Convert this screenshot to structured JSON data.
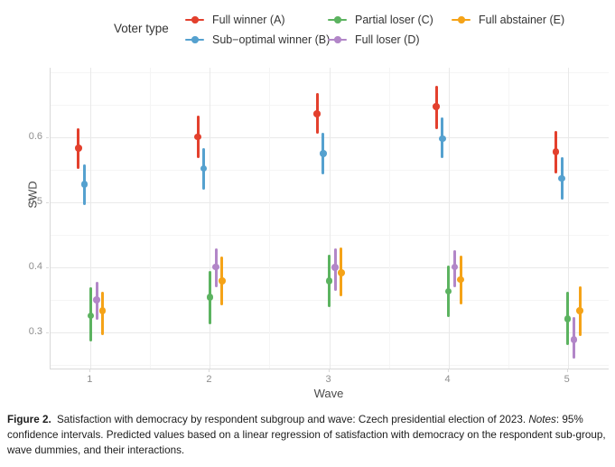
{
  "legend": {
    "title": "Voter type"
  },
  "chart_data": {
    "type": "scatter",
    "title": "",
    "xlabel": "Wave",
    "ylabel": "SWD",
    "categories": [
      "1",
      "2",
      "3",
      "4",
      "5"
    ],
    "yticks": [
      0.3,
      0.4,
      0.5,
      0.6
    ],
    "ylim": [
      0.24,
      0.71
    ],
    "grid": true,
    "legend_position": "top",
    "error_bars": "95% confidence intervals",
    "series": [
      {
        "name": "Full winner (A)",
        "color": "#e3402d",
        "values": [
          0.583,
          0.601,
          0.636,
          0.647,
          0.578
        ],
        "ci_low": [
          0.551,
          0.568,
          0.605,
          0.612,
          0.545
        ],
        "ci_high": [
          0.614,
          0.633,
          0.668,
          0.679,
          0.61
        ]
      },
      {
        "name": "Sub−optimal winner (B)",
        "color": "#55a1cf",
        "values": [
          0.528,
          0.552,
          0.575,
          0.598,
          0.537
        ],
        "ci_low": [
          0.496,
          0.519,
          0.543,
          0.568,
          0.504
        ],
        "ci_high": [
          0.559,
          0.584,
          0.607,
          0.631,
          0.569
        ]
      },
      {
        "name": "Partial loser (C)",
        "color": "#5cb360",
        "values": [
          0.326,
          0.354,
          0.379,
          0.363,
          0.321
        ],
        "ci_low": [
          0.286,
          0.313,
          0.339,
          0.323,
          0.281
        ],
        "ci_high": [
          0.369,
          0.394,
          0.42,
          0.403,
          0.363
        ]
      },
      {
        "name": "Full loser (D)",
        "color": "#b286c8",
        "values": [
          0.35,
          0.401,
          0.4,
          0.401,
          0.289
        ],
        "ci_low": [
          0.32,
          0.369,
          0.364,
          0.369,
          0.26
        ],
        "ci_high": [
          0.378,
          0.429,
          0.429,
          0.427,
          0.323
        ]
      },
      {
        "name": "Full abstainer (E)",
        "color": "#f5a318",
        "values": [
          0.333,
          0.379,
          0.392,
          0.381,
          0.333
        ],
        "ci_low": [
          0.296,
          0.341,
          0.355,
          0.343,
          0.295
        ],
        "ci_high": [
          0.363,
          0.416,
          0.43,
          0.418,
          0.371
        ]
      }
    ]
  },
  "caption": {
    "label": "Figure 2.",
    "body": " Satisfaction with democracy by respondent subgroup and wave: Czech presidential election of 2023. ",
    "notes_label": "Notes",
    "notes_body": ": 95% confidence intervals. Predicted values based on a linear regression of satisfaction with democracy on the respondent sub-group, wave dummies, and their interactions."
  }
}
